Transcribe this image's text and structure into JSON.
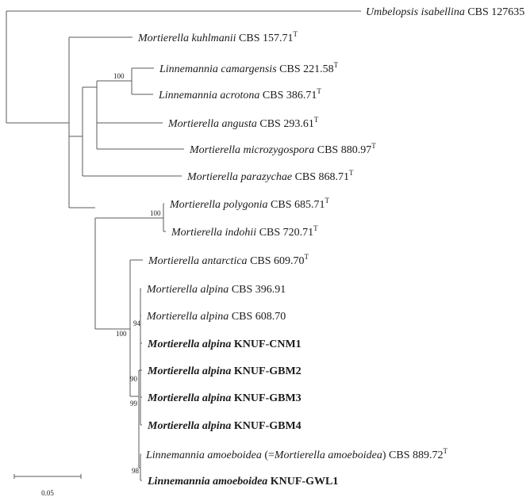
{
  "taxa": [
    {
      "id": "umbelopsis",
      "species": "Umbelopsis isabellina",
      "strain": "CBS 127635",
      "type_strain": false,
      "bold": false,
      "bracket": ""
    },
    {
      "id": "kuhlmanii",
      "species": "Mortierella kuhlmanii",
      "strain": "CBS 157.71",
      "type_strain": true,
      "bold": false,
      "bracket": ""
    },
    {
      "id": "camargensis",
      "species": "Linnemannia camargensis",
      "strain": "CBS 221.58",
      "type_strain": true,
      "bold": false,
      "bracket": ""
    },
    {
      "id": "acrotona",
      "species": "Linnemannia acrotona",
      "strain": "CBS 386.71",
      "type_strain": true,
      "bold": false,
      "bracket": ""
    },
    {
      "id": "angusta",
      "species": "Mortierella angusta",
      "strain": "CBS 293.61",
      "type_strain": true,
      "bold": false,
      "bracket": ""
    },
    {
      "id": "microzygospora",
      "species": "Mortierella microzygospora",
      "strain": "CBS 880.97",
      "type_strain": true,
      "bold": false,
      "bracket": ""
    },
    {
      "id": "parazychae",
      "species": "Mortierella parazychae",
      "strain": "CBS 868.71",
      "type_strain": true,
      "bold": false,
      "bracket": ""
    },
    {
      "id": "polygonia",
      "species": "Mortierella polygonia",
      "strain": "CBS 685.71",
      "type_strain": true,
      "bold": false,
      "bracket": ""
    },
    {
      "id": "indohii",
      "species": "Mortierella indohii",
      "strain": "CBS 720.71",
      "type_strain": true,
      "bold": false,
      "bracket": ""
    },
    {
      "id": "antarctica",
      "species": "Mortierella antarctica",
      "strain": "CBS 609.70",
      "type_strain": true,
      "bold": false,
      "bracket": ""
    },
    {
      "id": "alpina1",
      "species": "Mortierella alpina",
      "strain": "CBS 396.91",
      "type_strain": false,
      "bold": false,
      "bracket": ""
    },
    {
      "id": "alpina2",
      "species": "Mortierella alpina",
      "strain": "CBS 608.70",
      "type_strain": false,
      "bold": false,
      "bracket": ""
    },
    {
      "id": "cnm1",
      "species": "Mortierella alpina",
      "strain": "KNUF-CNM1",
      "type_strain": false,
      "bold": true,
      "bracket": ""
    },
    {
      "id": "gbm2",
      "species": "Mortierella alpina",
      "strain": "KNUF-GBM2",
      "type_strain": false,
      "bold": true,
      "bracket": ""
    },
    {
      "id": "gbm3",
      "species": "Mortierella alpina",
      "strain": "KNUF-GBM3",
      "type_strain": false,
      "bold": true,
      "bracket": ""
    },
    {
      "id": "gbm4",
      "species": "Mortierella alpina",
      "strain": "KNUF-GBM4",
      "type_strain": false,
      "bold": true,
      "bracket": ""
    },
    {
      "id": "amoeboidea",
      "species": "Linnemannia amoeboidea",
      "strain": "CBS 889.72",
      "type_strain": true,
      "bold": false,
      "bracket": "Mortierella amoeboidea"
    },
    {
      "id": "gwl1",
      "species": "Linnemannia amoeboidea",
      "strain": "KNUF-GWL1",
      "type_strain": false,
      "bold": true,
      "bracket": ""
    }
  ],
  "type_marker": "T",
  "bootstrap": [
    {
      "node": "linnemannia-pair",
      "value": "100"
    },
    {
      "node": "polygonia-indohii",
      "value": "100"
    },
    {
      "node": "alpina-group",
      "value": "100"
    },
    {
      "node": "alpina-inner-a",
      "value": "94"
    },
    {
      "node": "alpina-inner-b",
      "value": "90"
    },
    {
      "node": "alpina-inner-c",
      "value": "99"
    },
    {
      "node": "amoeboidea-pair",
      "value": "98"
    }
  ],
  "scale_bar": {
    "value": 0.05,
    "label": "0.05"
  }
}
